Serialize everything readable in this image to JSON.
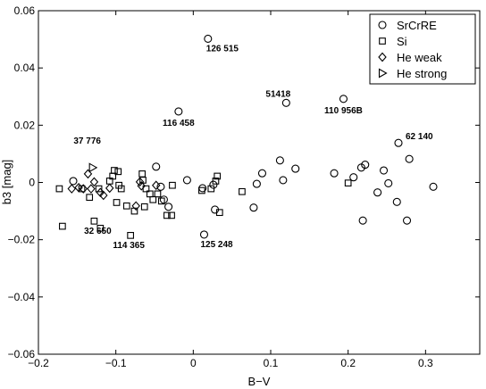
{
  "chart_data": {
    "type": "scatter",
    "xlabel": "B−V",
    "ylabel": "b3 [mag]",
    "xlim": [
      -0.2,
      0.37
    ],
    "ylim": [
      -0.06,
      0.06
    ],
    "xticks": [
      "−0.2",
      "−0.1",
      "0",
      "0.1",
      "0.2",
      "0.3"
    ],
    "yticks": [
      "−0.06",
      "−0.04",
      "−0.02",
      "0",
      "0.02",
      "0.04",
      "0.06"
    ],
    "grid": false,
    "legend_position": "top-right",
    "series": [
      {
        "name": "SrCrRE",
        "marker": "circle",
        "points": [
          [
            -0.155,
            0.0005
          ],
          [
            -0.048,
            0.0055
          ],
          [
            -0.042,
            -0.0015
          ],
          [
            -0.038,
            -0.006
          ],
          [
            -0.032,
            -0.0085
          ],
          [
            -0.019,
            0.0248
          ],
          [
            -0.008,
            0.0008
          ],
          [
            0.012,
            -0.002
          ],
          [
            0.014,
            -0.0182
          ],
          [
            0.019,
            0.0502
          ],
          [
            0.026,
            -0.0008
          ],
          [
            0.028,
            -0.0095
          ],
          [
            0.078,
            -0.0088
          ],
          [
            0.082,
            -0.0005
          ],
          [
            0.089,
            0.0032
          ],
          [
            0.112,
            0.0077
          ],
          [
            0.116,
            0.0008
          ],
          [
            0.12,
            0.0278
          ],
          [
            0.132,
            0.0048
          ],
          [
            0.182,
            0.0032
          ],
          [
            0.194,
            0.0292
          ],
          [
            0.207,
            0.0018
          ],
          [
            0.217,
            0.0052
          ],
          [
            0.219,
            -0.0133
          ],
          [
            0.222,
            0.0062
          ],
          [
            0.238,
            -0.0035
          ],
          [
            0.246,
            0.0042
          ],
          [
            0.252,
            -0.0003
          ],
          [
            0.263,
            -0.0068
          ],
          [
            0.265,
            0.0138
          ],
          [
            0.276,
            -0.0133
          ],
          [
            0.279,
            0.0082
          ],
          [
            0.31,
            -0.0015
          ]
        ]
      },
      {
        "name": "Si",
        "marker": "square",
        "points": [
          [
            -0.173,
            -0.0022
          ],
          [
            -0.169,
            -0.0153
          ],
          [
            -0.144,
            -0.0022
          ],
          [
            -0.134,
            -0.0052
          ],
          [
            -0.128,
            -0.0135
          ],
          [
            -0.122,
            -0.0022
          ],
          [
            -0.12,
            -0.016
          ],
          [
            -0.108,
            0.0005
          ],
          [
            -0.104,
            0.0022
          ],
          [
            -0.102,
            0.0042
          ],
          [
            -0.099,
            -0.007
          ],
          [
            -0.097,
            0.0038
          ],
          [
            -0.096,
            -0.001
          ],
          [
            -0.093,
            -0.0022
          ],
          [
            -0.086,
            -0.0082
          ],
          [
            -0.081,
            -0.0185
          ],
          [
            -0.076,
            -0.01
          ],
          [
            -0.066,
            0.003
          ],
          [
            -0.065,
            0.0008
          ],
          [
            -0.063,
            -0.0085
          ],
          [
            -0.061,
            -0.0022
          ],
          [
            -0.056,
            -0.004
          ],
          [
            -0.052,
            -0.006
          ],
          [
            -0.046,
            -0.004
          ],
          [
            -0.041,
            -0.0065
          ],
          [
            -0.034,
            -0.0115
          ],
          [
            -0.028,
            -0.0115
          ],
          [
            -0.027,
            -0.001
          ],
          [
            0.011,
            -0.0028
          ],
          [
            0.023,
            -0.0022
          ],
          [
            0.029,
            0.0005
          ],
          [
            0.031,
            0.0022
          ],
          [
            0.034,
            -0.0105
          ],
          [
            0.063,
            -0.0032
          ],
          [
            0.2,
            -0.0002
          ]
        ]
      },
      {
        "name": "He weak",
        "marker": "diamond",
        "points": [
          [
            -0.157,
            -0.0022
          ],
          [
            -0.148,
            -0.0018
          ],
          [
            -0.142,
            -0.0022
          ],
          [
            -0.136,
            0.003
          ],
          [
            -0.132,
            -0.0022
          ],
          [
            -0.128,
            0.0002
          ],
          [
            -0.12,
            -0.0035
          ],
          [
            -0.116,
            -0.0045
          ],
          [
            -0.108,
            -0.002
          ],
          [
            -0.074,
            -0.0082
          ],
          [
            -0.069,
            0.0002
          ],
          [
            -0.067,
            -0.0012
          ],
          [
            -0.048,
            -0.001
          ]
        ]
      },
      {
        "name": "He strong",
        "marker": "triangle-right",
        "points": [
          [
            -0.13,
            0.0052
          ]
        ]
      }
    ],
    "annotations": [
      {
        "text": "126 515",
        "x": 0.019,
        "y": 0.0502
      },
      {
        "text": "116 458",
        "x": -0.019,
        "y": 0.0248
      },
      {
        "text": "51418",
        "x": 0.12,
        "y": 0.0278
      },
      {
        "text": "110 956B",
        "x": 0.194,
        "y": 0.0292
      },
      {
        "text": "62 140",
        "x": 0.265,
        "y": 0.0138
      },
      {
        "text": "37 776",
        "x": -0.13,
        "y": 0.0052
      },
      {
        "text": "32 650",
        "x": -0.128,
        "y": -0.0135
      },
      {
        "text": "114 365",
        "x": -0.081,
        "y": -0.0185
      },
      {
        "text": "125 248",
        "x": 0.014,
        "y": -0.0182
      }
    ]
  }
}
